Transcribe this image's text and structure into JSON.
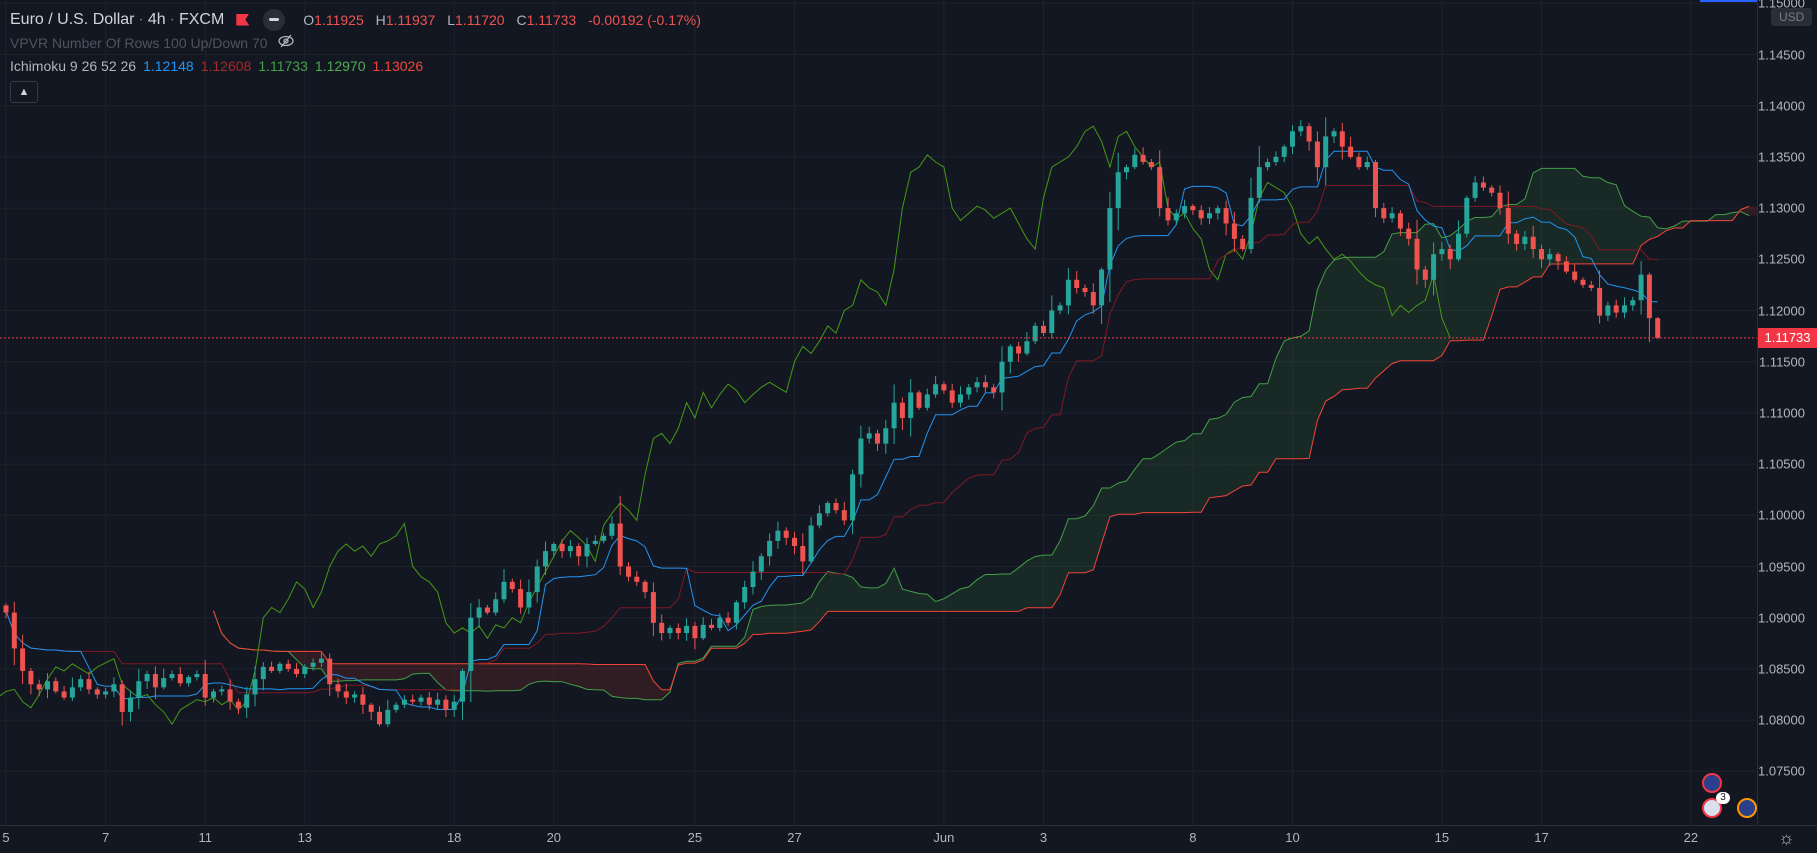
{
  "header": {
    "symbol": "Euro / U.S. Dollar",
    "sep1": "·",
    "interval": "4h",
    "sep2": "·",
    "exchange": "FXCM",
    "ohlc": {
      "o_label": "O",
      "o": "1.11925",
      "h_label": "H",
      "h": "1.11937",
      "l_label": "L",
      "l": "1.11720",
      "c_label": "C",
      "c": "1.11733",
      "change": "-0.00192 (-0.17%)"
    }
  },
  "indicators": {
    "vpvr": {
      "name": "VPVR Number Of Rows 100 Up/Down 70",
      "icon": "eye-hidden-icon"
    },
    "ichimoku": {
      "name": "Ichimoku 9 26 52 26",
      "values": [
        "1.12148",
        "1.12608",
        "1.11733",
        "1.12970",
        "1.13026"
      ],
      "colors": [
        "#2196f3",
        "#a52a2a",
        "#43a047",
        "#4caf50",
        "#f44336"
      ]
    },
    "collapse_icon": "chevron-up-icon"
  },
  "price_axis": {
    "currency": "USD",
    "ticks": [
      "1.15000",
      "1.14500",
      "1.14000",
      "1.13500",
      "1.13000",
      "1.12500",
      "1.12000",
      "1.11500",
      "1.11000",
      "1.10500",
      "1.10000",
      "1.09500",
      "1.09000",
      "1.08500",
      "1.08000",
      "1.07500"
    ],
    "current_price": "1.11733",
    "current_color": "#f23645"
  },
  "time_axis": {
    "labels": [
      {
        "label": "5",
        "bar": 0
      },
      {
        "label": "7",
        "bar": 12
      },
      {
        "label": "11",
        "bar": 24
      },
      {
        "label": "13",
        "bar": 36
      },
      {
        "label": "18",
        "bar": 54
      },
      {
        "label": "20",
        "bar": 66
      },
      {
        "label": "25",
        "bar": 83
      },
      {
        "label": "27",
        "bar": 95
      },
      {
        "label": "Jun",
        "bar": 113
      },
      {
        "label": "3",
        "bar": 125
      },
      {
        "label": "8",
        "bar": 143
      },
      {
        "label": "10",
        "bar": 155
      },
      {
        "label": "15",
        "bar": 173
      },
      {
        "label": "17",
        "bar": 185
      },
      {
        "label": "22",
        "bar": 203
      }
    ]
  },
  "events": {
    "count_badge": "3"
  },
  "chart_data": {
    "type": "candlestick",
    "ylim": [
      1.0705,
      1.1505
    ],
    "grid": true,
    "up_color": "#26a69a",
    "down_color": "#ef5350",
    "ichimoku": {
      "conversion": 9,
      "base": 26,
      "span_b": 52,
      "displacement": 26,
      "colors": {
        "conversion": "#2196f3",
        "base": "#801922",
        "lagging": "#459915",
        "span_a": "#43a047",
        "span_b": "#f44336"
      }
    },
    "first_open": 1.0912,
    "last_high": 1.11937,
    "last_low": 1.1172,
    "closes": [
      1.0905,
      1.087,
      1.0848,
      1.0835,
      1.083,
      1.0838,
      1.0828,
      1.0822,
      1.0832,
      1.084,
      1.083,
      1.0825,
      1.0828,
      1.0835,
      1.0808,
      1.0822,
      1.0838,
      1.0845,
      1.0832,
      1.0841,
      1.0845,
      1.0836,
      1.0842,
      1.0845,
      1.0822,
      1.0828,
      1.083,
      1.0818,
      1.0812,
      1.0825,
      1.084,
      1.0852,
      1.0848,
      1.0855,
      1.085,
      1.0845,
      1.0852,
      1.0856,
      1.086,
      1.0835,
      1.0828,
      1.0822,
      1.0825,
      1.0815,
      1.0808,
      1.0796,
      1.081,
      1.0815,
      1.082,
      1.0818,
      1.0822,
      1.0815,
      1.082,
      1.081,
      1.0818,
      1.0848,
      1.09,
      1.091,
      1.0905,
      1.0918,
      1.0935,
      1.0928,
      1.091,
      1.0925,
      1.095,
      1.0965,
      1.0972,
      1.0965,
      1.097,
      1.096,
      1.0972,
      1.0975,
      1.098,
      1.0992,
      1.095,
      1.094,
      1.0935,
      1.0925,
      1.0895,
      1.0885,
      1.089,
      1.0885,
      1.0892,
      1.088,
      1.0893,
      1.089,
      1.09,
      1.0895,
      1.0915,
      1.093,
      1.0945,
      1.096,
      1.0975,
      1.0985,
      1.0978,
      1.097,
      1.0955,
      1.099,
      1.1002,
      1.1012,
      1.1005,
      1.0995,
      1.104,
      1.1075,
      1.108,
      1.107,
      1.1085,
      1.111,
      1.1095,
      1.112,
      1.1105,
      1.1118,
      1.1128,
      1.1122,
      1.111,
      1.1118,
      1.1125,
      1.113,
      1.1125,
      1.112,
      1.115,
      1.1165,
      1.1158,
      1.117,
      1.1185,
      1.1178,
      1.12,
      1.1205,
      1.123,
      1.1222,
      1.1218,
      1.1205,
      1.124,
      1.13,
      1.1335,
      1.134,
      1.1352,
      1.1345,
      1.134,
      1.13,
      1.1288,
      1.1295,
      1.1302,
      1.1298,
      1.129,
      1.1295,
      1.13,
      1.1285,
      1.127,
      1.126,
      1.131,
      1.134,
      1.1345,
      1.135,
      1.136,
      1.1375,
      1.138,
      1.1365,
      1.134,
      1.137,
      1.1375,
      1.136,
      1.135,
      1.134,
      1.1345,
      1.13,
      1.129,
      1.1295,
      1.128,
      1.127,
      1.124,
      1.123,
      1.1255,
      1.126,
      1.125,
      1.1275,
      1.131,
      1.1325,
      1.132,
      1.1315,
      1.13,
      1.1275,
      1.1265,
      1.1272,
      1.126,
      1.125,
      1.1255,
      1.1248,
      1.1238,
      1.123,
      1.1225,
      1.1222,
      1.1195,
      1.1205,
      1.1198,
      1.1205,
      1.121,
      1.1235,
      1.11925,
      1.11733
    ]
  }
}
